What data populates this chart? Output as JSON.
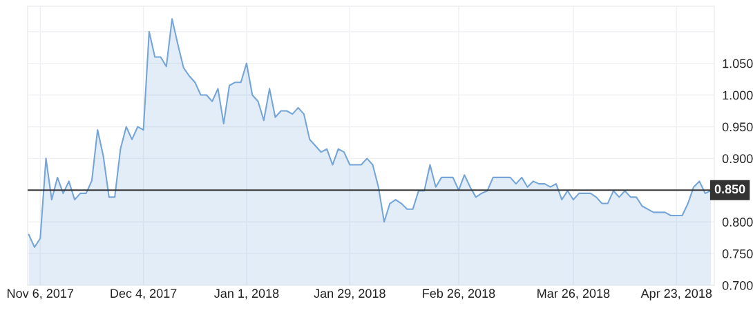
{
  "chart_data": {
    "type": "area",
    "categories": [
      null,
      null,
      "Nov 6, 2017",
      null,
      null,
      null,
      null,
      null,
      null,
      null,
      null,
      null,
      null,
      null,
      null,
      null,
      null,
      null,
      null,
      null,
      "Dec 4, 2017",
      null,
      null,
      null,
      null,
      null,
      null,
      null,
      null,
      null,
      null,
      null,
      null,
      null,
      null,
      null,
      null,
      null,
      "Jan 1, 2018",
      null,
      null,
      null,
      null,
      null,
      null,
      null,
      null,
      null,
      null,
      null,
      null,
      null,
      null,
      null,
      null,
      null,
      "Jan 29, 2018",
      null,
      null,
      null,
      null,
      null,
      null,
      null,
      null,
      null,
      null,
      null,
      null,
      null,
      null,
      null,
      null,
      null,
      null,
      "Feb 26, 2018",
      null,
      null,
      null,
      null,
      null,
      null,
      null,
      null,
      null,
      null,
      null,
      null,
      null,
      null,
      null,
      null,
      null,
      null,
      null,
      "Mar 26, 2018",
      null,
      null,
      null,
      null,
      null,
      null,
      null,
      null,
      null,
      null,
      null,
      null,
      null,
      null,
      null,
      null,
      null,
      "Apr 23, 2018",
      null,
      null,
      null,
      null,
      null,
      null
    ],
    "series": [
      {
        "color": "#75a5d8",
        "values": [
          0.78,
          0.76,
          0.774,
          0.9,
          0.835,
          0.87,
          0.845,
          0.864,
          0.835,
          0.845,
          0.845,
          0.865,
          0.945,
          0.904,
          0.839,
          0.839,
          0.915,
          0.95,
          0.93,
          0.95,
          0.945,
          1.1,
          1.06,
          1.06,
          1.045,
          1.12,
          1.08,
          1.043,
          1.03,
          1.02,
          1.0,
          1.0,
          0.99,
          1.01,
          0.955,
          1.015,
          1.02,
          1.02,
          1.05,
          1.0,
          0.99,
          0.96,
          1.01,
          0.965,
          0.975,
          0.975,
          0.97,
          0.98,
          0.97,
          0.93,
          0.92,
          0.91,
          0.915,
          0.89,
          0.915,
          0.91,
          0.89,
          0.89,
          0.89,
          0.9,
          0.89,
          0.855,
          0.8,
          0.829,
          0.835,
          0.829,
          0.82,
          0.82,
          0.849,
          0.849,
          0.89,
          0.855,
          0.87,
          0.87,
          0.87,
          0.85,
          0.874,
          0.855,
          0.839,
          0.845,
          0.849,
          0.87,
          0.87,
          0.87,
          0.87,
          0.86,
          0.87,
          0.855,
          0.864,
          0.86,
          0.86,
          0.855,
          0.86,
          0.835,
          0.849,
          0.835,
          0.845,
          0.845,
          0.845,
          0.839,
          0.829,
          0.829,
          0.849,
          0.839,
          0.849,
          0.839,
          0.839,
          0.825,
          0.82,
          0.815,
          0.815,
          0.815,
          0.81,
          0.81,
          0.81,
          0.829,
          0.855,
          0.864,
          0.845,
          0.849
        ]
      }
    ],
    "ylim": [
      0.7,
      1.14
    ],
    "yticks": [
      {
        "value": 0.7,
        "label": "0.700"
      },
      {
        "value": 0.75,
        "label": "0.750"
      },
      {
        "value": 0.8,
        "label": "0.800"
      },
      {
        "value": 0.9,
        "label": "0.900"
      },
      {
        "value": 0.95,
        "label": "0.950"
      },
      {
        "value": 1.0,
        "label": "1.000"
      },
      {
        "value": 1.05,
        "label": "1.050"
      },
      {
        "value": 1.1,
        "label": null
      }
    ],
    "ref_lines": [
      {
        "axis": "y",
        "value": 0.85,
        "label": "0.850",
        "color": "#333333"
      }
    ],
    "grid": true
  }
}
